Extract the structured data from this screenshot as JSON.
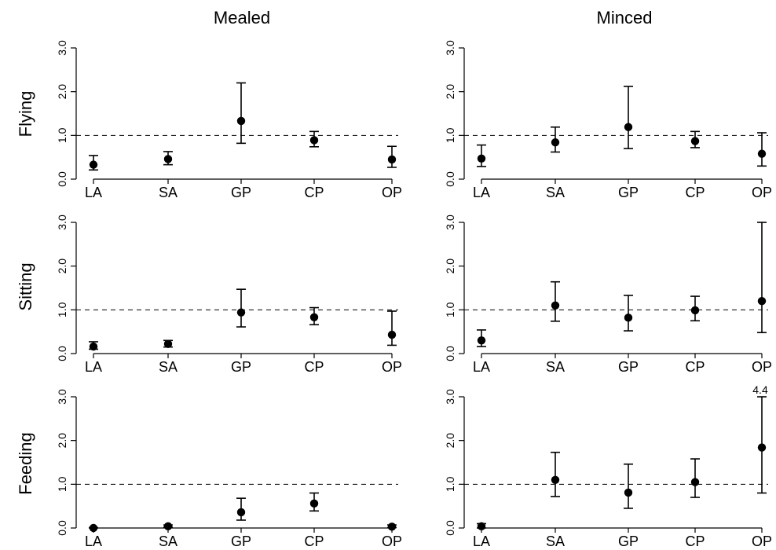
{
  "figure": {
    "column_titles": [
      "Mealed",
      "Minced"
    ],
    "row_titles": [
      "Flying",
      "Sitting",
      "Feeding"
    ]
  },
  "chart_data": [
    {
      "type": "scatter",
      "panel": "Flying / Mealed",
      "categories": [
        "LA",
        "SA",
        "GP",
        "CP",
        "OP"
      ],
      "y": [
        0.33,
        0.46,
        1.33,
        0.89,
        0.45
      ],
      "y_low": [
        0.21,
        0.33,
        0.82,
        0.74,
        0.27
      ],
      "y_high": [
        0.54,
        0.63,
        2.2,
        1.09,
        0.75
      ],
      "reference_line": 1.0,
      "ylim": [
        0,
        3
      ],
      "yticks": [
        "0.0",
        "1.0",
        "2.0",
        "3.0"
      ],
      "grid": false
    },
    {
      "type": "scatter",
      "panel": "Flying / Minced",
      "categories": [
        "LA",
        "SA",
        "GP",
        "CP",
        "OP"
      ],
      "y": [
        0.47,
        0.84,
        1.19,
        0.87,
        0.58
      ],
      "y_low": [
        0.29,
        0.62,
        0.7,
        0.72,
        0.3
      ],
      "y_high": [
        0.78,
        1.19,
        2.12,
        1.09,
        1.06
      ],
      "reference_line": 1.0,
      "ylim": [
        0,
        3
      ],
      "yticks": [
        "0.0",
        "1.0",
        "2.0",
        "3.0"
      ],
      "grid": false
    },
    {
      "type": "scatter",
      "panel": "Sitting / Mealed",
      "categories": [
        "LA",
        "SA",
        "GP",
        "CP",
        "OP"
      ],
      "y": [
        0.16,
        0.22,
        0.94,
        0.83,
        0.43
      ],
      "y_low": [
        0.1,
        0.15,
        0.61,
        0.66,
        0.19
      ],
      "y_high": [
        0.27,
        0.3,
        1.47,
        1.05,
        0.97
      ],
      "reference_line": 1.0,
      "ylim": [
        0,
        3
      ],
      "yticks": [
        "0.0",
        "1.0",
        "2.0",
        "3.0"
      ],
      "grid": false
    },
    {
      "type": "scatter",
      "panel": "Sitting / Minced",
      "categories": [
        "LA",
        "SA",
        "GP",
        "CP",
        "OP"
      ],
      "y": [
        0.3,
        1.1,
        0.82,
        0.99,
        1.2
      ],
      "y_low": [
        0.16,
        0.74,
        0.52,
        0.75,
        0.48
      ],
      "y_high": [
        0.54,
        1.64,
        1.33,
        1.31,
        3.03
      ],
      "reference_line": 1.0,
      "ylim": [
        0,
        3
      ],
      "yticks": [
        "0.0",
        "1.0",
        "2.0",
        "3.0"
      ],
      "grid": false
    },
    {
      "type": "scatter",
      "panel": "Feeding / Mealed",
      "categories": [
        "LA",
        "SA",
        "GP",
        "CP",
        "OP"
      ],
      "y": [
        0.0,
        0.04,
        0.36,
        0.56,
        0.03
      ],
      "y_low": [
        0.0,
        0.02,
        0.18,
        0.39,
        0.01
      ],
      "y_high": [
        0.01,
        0.07,
        0.68,
        0.8,
        0.07
      ],
      "reference_line": 1.0,
      "ylim": [
        0,
        3
      ],
      "yticks": [
        "0.0",
        "1.0",
        "2.0",
        "3.0"
      ],
      "grid": false
    },
    {
      "type": "scatter",
      "panel": "Feeding / Minced",
      "categories": [
        "LA",
        "SA",
        "GP",
        "CP",
        "OP"
      ],
      "y": [
        0.04,
        1.1,
        0.81,
        1.05,
        1.84
      ],
      "y_low": [
        0.0,
        0.72,
        0.45,
        0.7,
        0.8
      ],
      "y_high": [
        0.1,
        1.73,
        1.46,
        1.58,
        4.4
      ],
      "reference_line": 1.0,
      "ylim": [
        0,
        3
      ],
      "yticks": [
        "0.0",
        "1.0",
        "2.0",
        "3.0"
      ],
      "grid": false,
      "annotations": [
        {
          "text": "4.4",
          "category": "OP"
        }
      ]
    }
  ]
}
